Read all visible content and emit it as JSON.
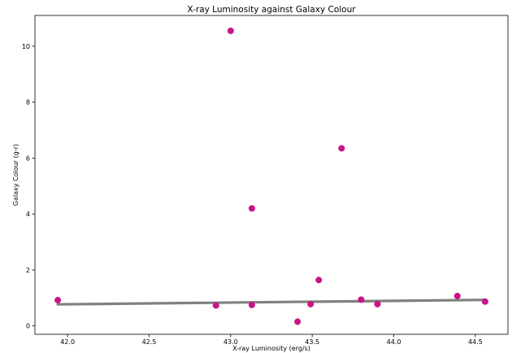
{
  "chart_data": {
    "type": "scatter",
    "title": "X-ray Luminosity against Galaxy Colour",
    "xlabel": "X-ray Luminosity (erg/s)",
    "ylabel": "Galaxy Colour (g-r)",
    "xlim": [
      41.8,
      44.7
    ],
    "ylim": [
      -0.3,
      11.1
    ],
    "xticks": [
      42.0,
      42.5,
      43.0,
      43.5,
      44.0,
      44.5
    ],
    "xtick_labels": [
      "42.0",
      "42.5",
      "43.0",
      "43.5",
      "44.0",
      "44.5"
    ],
    "yticks": [
      0,
      2,
      4,
      6,
      8,
      10
    ],
    "ytick_labels": [
      "0",
      "2",
      "4",
      "6",
      "8",
      "10"
    ],
    "grid": false,
    "series": [
      {
        "kind": "points",
        "color": "#c71585",
        "points": [
          {
            "x": 41.94,
            "y": 0.92
          },
          {
            "x": 42.91,
            "y": 0.73
          },
          {
            "x": 43.0,
            "y": 10.55
          },
          {
            "x": 43.13,
            "y": 4.2
          },
          {
            "x": 43.13,
            "y": 0.75
          },
          {
            "x": 43.41,
            "y": 0.15
          },
          {
            "x": 43.49,
            "y": 0.78
          },
          {
            "x": 43.54,
            "y": 1.64
          },
          {
            "x": 43.68,
            "y": 6.35
          },
          {
            "x": 43.8,
            "y": 0.94
          },
          {
            "x": 43.9,
            "y": 0.78
          },
          {
            "x": 44.39,
            "y": 1.07
          },
          {
            "x": 44.56,
            "y": 0.87
          }
        ]
      },
      {
        "kind": "fit-line",
        "color": "#808080",
        "points": [
          {
            "x": 41.94,
            "y": 0.77
          },
          {
            "x": 44.56,
            "y": 0.93
          }
        ]
      }
    ]
  }
}
